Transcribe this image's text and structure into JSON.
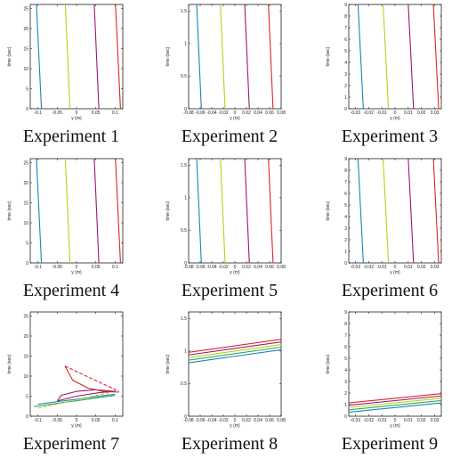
{
  "colors": {
    "blue": "#1b86b0",
    "yellow": "#b7cf1c",
    "magenta": "#9a1a6e",
    "red": "#d8262b",
    "green": "#2aa862"
  },
  "chart_data": [
    {
      "type": "line",
      "caption": "Experiment 1",
      "xlabel": "y (m)",
      "ylabel": "time (sec)",
      "xlim": [
        -0.12,
        0.12
      ],
      "ylim": [
        0,
        26
      ],
      "xticks": [
        -0.1,
        -0.05,
        0,
        0.05,
        0.1
      ],
      "xtick_labels": [
        "-0.1",
        "-0.05",
        "0",
        "0.05",
        "0.1"
      ],
      "yticks": [
        0,
        5,
        10,
        15,
        20,
        25
      ],
      "ytick_labels": [
        "0",
        "5",
        "10",
        "15",
        "20",
        "25"
      ],
      "series": [
        {
          "color": "#1b86b0",
          "x": [
            -0.104,
            -0.091
          ],
          "y": [
            26,
            0
          ]
        },
        {
          "color": "#b7cf1c",
          "x": [
            -0.029,
            -0.017
          ],
          "y": [
            26,
            0
          ]
        },
        {
          "color": "#9a1a6e",
          "x": [
            0.046,
            0.058
          ],
          "y": [
            26,
            0
          ]
        },
        {
          "color": "#d8262b",
          "x": [
            0.101,
            0.114
          ],
          "y": [
            26,
            0
          ]
        }
      ]
    },
    {
      "type": "line",
      "caption": "Experiment 2",
      "xlabel": "y (m)",
      "ylabel": "time (sec)",
      "xlim": [
        -0.08,
        0.08
      ],
      "ylim": [
        0,
        1.6
      ],
      "xticks": [
        -0.08,
        -0.06,
        -0.04,
        -0.02,
        0,
        0.02,
        0.04,
        0.06,
        0.08
      ],
      "xtick_labels": [
        "-0.08",
        "-0.06",
        "-0.04",
        "-0.02",
        "0",
        "0.02",
        "0.04",
        "0.06",
        "0.08"
      ],
      "yticks": [
        0,
        0.5,
        1,
        1.5
      ],
      "ytick_labels": [
        "0",
        "0.5",
        "1",
        "1.5"
      ],
      "series": [
        {
          "color": "#1b86b0",
          "x": [
            -0.066,
            -0.058
          ],
          "y": [
            1.6,
            0
          ]
        },
        {
          "color": "#b7cf1c",
          "x": [
            -0.025,
            -0.017
          ],
          "y": [
            1.6,
            0
          ]
        },
        {
          "color": "#9a1a6e",
          "x": [
            0.017,
            0.025
          ],
          "y": [
            1.6,
            0
          ]
        },
        {
          "color": "#d8262b",
          "x": [
            0.058,
            0.066
          ],
          "y": [
            1.6,
            0
          ]
        }
      ]
    },
    {
      "type": "line",
      "caption": "Experiment 3",
      "xlabel": "y (m)",
      "ylabel": "time (sec)",
      "xlim": [
        -0.035,
        0.035
      ],
      "ylim": [
        0,
        9
      ],
      "xticks": [
        -0.03,
        -0.02,
        -0.01,
        0,
        0.01,
        0.02,
        0.03
      ],
      "xtick_labels": [
        "-0.03",
        "-0.02",
        "-0.01",
        "0",
        "0.01",
        "0.02",
        "0.03"
      ],
      "yticks": [
        0,
        1,
        2,
        3,
        4,
        5,
        6,
        7,
        8,
        9
      ],
      "ytick_labels": [
        "0",
        "1",
        "2",
        "3",
        "4",
        "5",
        "6",
        "7",
        "8",
        "9"
      ],
      "series": [
        {
          "color": "#1b86b0",
          "x": [
            -0.028,
            -0.024
          ],
          "y": [
            9,
            0
          ]
        },
        {
          "color": "#b7cf1c",
          "x": [
            -0.009,
            -0.005
          ],
          "y": [
            9,
            0
          ]
        },
        {
          "color": "#9a1a6e",
          "x": [
            0.01,
            0.014
          ],
          "y": [
            9,
            0
          ]
        },
        {
          "color": "#d8262b",
          "x": [
            0.029,
            0.033
          ],
          "y": [
            9,
            0
          ]
        }
      ]
    },
    {
      "type": "line",
      "caption": "Experiment 4",
      "xlabel": "y (m)",
      "ylabel": "time (sec)",
      "xlim": [
        -0.12,
        0.12
      ],
      "ylim": [
        0,
        26
      ],
      "xticks": [
        -0.1,
        -0.05,
        0,
        0.05,
        0.1
      ],
      "xtick_labels": [
        "-0.1",
        "-0.05",
        "0",
        "0.05",
        "0.1"
      ],
      "yticks": [
        0,
        5,
        10,
        15,
        20,
        25
      ],
      "ytick_labels": [
        "0",
        "5",
        "10",
        "15",
        "20",
        "25"
      ],
      "series": [
        {
          "color": "#1b86b0",
          "x": [
            -0.104,
            -0.091
          ],
          "y": [
            26,
            0
          ]
        },
        {
          "color": "#b7cf1c",
          "x": [
            -0.029,
            -0.017
          ],
          "y": [
            26,
            0
          ]
        },
        {
          "color": "#9a1a6e",
          "x": [
            0.046,
            0.058
          ],
          "y": [
            26,
            0
          ]
        },
        {
          "color": "#d8262b",
          "x": [
            0.101,
            0.114
          ],
          "y": [
            26,
            0
          ]
        }
      ]
    },
    {
      "type": "line",
      "caption": "Experiment 5",
      "xlabel": "y (m)",
      "ylabel": "time (sec)",
      "xlim": [
        -0.08,
        0.08
      ],
      "ylim": [
        0,
        1.6
      ],
      "xticks": [
        -0.08,
        -0.06,
        -0.04,
        -0.02,
        0,
        0.02,
        0.04,
        0.06,
        0.08
      ],
      "xtick_labels": [
        "-0.08",
        "-0.06",
        "-0.04",
        "-0.02",
        "0",
        "0.02",
        "0.04",
        "0.06",
        "0.08"
      ],
      "yticks": [
        0,
        0.5,
        1,
        1.5
      ],
      "ytick_labels": [
        "0",
        "0.5",
        "1",
        "1.5"
      ],
      "series": [
        {
          "color": "#1b86b0",
          "x": [
            -0.066,
            -0.058
          ],
          "y": [
            1.6,
            0
          ]
        },
        {
          "color": "#b7cf1c",
          "x": [
            -0.025,
            -0.017
          ],
          "y": [
            1.6,
            0
          ]
        },
        {
          "color": "#9a1a6e",
          "x": [
            0.017,
            0.025
          ],
          "y": [
            1.6,
            0
          ]
        },
        {
          "color": "#d8262b",
          "x": [
            0.058,
            0.066
          ],
          "y": [
            1.6,
            0
          ]
        }
      ]
    },
    {
      "type": "line",
      "caption": "Experiment 6",
      "xlabel": "y (m)",
      "ylabel": "time (sec)",
      "xlim": [
        -0.035,
        0.035
      ],
      "ylim": [
        0,
        9
      ],
      "xticks": [
        -0.03,
        -0.02,
        -0.01,
        0,
        0.01,
        0.02,
        0.03
      ],
      "xtick_labels": [
        "-0.03",
        "-0.02",
        "-0.01",
        "0",
        "0.01",
        "0.02",
        "0.03"
      ],
      "yticks": [
        0,
        1,
        2,
        3,
        4,
        5,
        6,
        7,
        8,
        9
      ],
      "ytick_labels": [
        "0",
        "1",
        "2",
        "3",
        "4",
        "5",
        "6",
        "7",
        "8",
        "9"
      ],
      "series": [
        {
          "color": "#1b86b0",
          "x": [
            -0.028,
            -0.024
          ],
          "y": [
            9,
            0
          ]
        },
        {
          "color": "#b7cf1c",
          "x": [
            -0.009,
            -0.005
          ],
          "y": [
            9,
            0
          ]
        },
        {
          "color": "#9a1a6e",
          "x": [
            0.01,
            0.014
          ],
          "y": [
            9,
            0
          ]
        },
        {
          "color": "#d8262b",
          "x": [
            0.029,
            0.033
          ],
          "y": [
            9,
            0
          ]
        }
      ]
    },
    {
      "type": "line",
      "caption": "Experiment 7",
      "xlabel": "y (m)",
      "ylabel": "time (sec)",
      "xlim": [
        -0.12,
        0.12
      ],
      "ylim": [
        0,
        26
      ],
      "xticks": [
        -0.1,
        -0.05,
        0,
        0.05,
        0.1
      ],
      "xtick_labels": [
        "-0.1",
        "-0.05",
        "0",
        "0.05",
        "0.1"
      ],
      "yticks": [
        0,
        5,
        10,
        15,
        20,
        25
      ],
      "ytick_labels": [
        "0",
        "5",
        "10",
        "15",
        "20",
        "25"
      ],
      "series": [
        {
          "color": "#1b86b0",
          "x": [
            -0.1,
            0.1
          ],
          "y": [
            3.0,
            5.5
          ]
        },
        {
          "color": "#2aa862",
          "x": [
            -0.11,
            0.1
          ],
          "y": [
            2.4,
            5.2
          ]
        },
        {
          "color": "#b7cf1c",
          "x": [
            -0.1,
            0.1
          ],
          "y": [
            2.0,
            6.2
          ],
          "dashed": true
        },
        {
          "color": "#9a1a6e",
          "x": [
            -0.05,
            -0.04,
            0,
            0.05,
            0.1,
            0.06,
            0.0,
            -0.05
          ],
          "y": [
            3.8,
            5.2,
            6.2,
            6.6,
            6.2,
            5.9,
            5.0,
            3.8
          ]
        },
        {
          "color": "#d8262b",
          "x": [
            -0.03,
            -0.01,
            0.03,
            0.07,
            0.11
          ],
          "y": [
            12.5,
            9.0,
            7.0,
            6.2,
            6.0
          ]
        },
        {
          "color": "#d8262b",
          "x": [
            -0.03,
            0.11
          ],
          "y": [
            12.5,
            6.2
          ],
          "dashed": true
        }
      ]
    },
    {
      "type": "line",
      "caption": "Experiment 8",
      "xlabel": "y (m)",
      "ylabel": "time (sec)",
      "xlim": [
        -0.08,
        0.08
      ],
      "ylim": [
        0,
        1.6
      ],
      "xticks": [
        -0.08,
        -0.06,
        -0.04,
        -0.02,
        0,
        0.02,
        0.04,
        0.06,
        0.08
      ],
      "xtick_labels": [
        "-0.08",
        "-0.06",
        "-0.04",
        "-0.02",
        "0",
        "0.02",
        "0.04",
        "0.06",
        "0.08"
      ],
      "yticks": [
        0,
        0.5,
        1,
        1.5
      ],
      "ytick_labels": [
        "0",
        "0.5",
        "1",
        "1.5"
      ],
      "series": [
        {
          "color": "#d8262b",
          "x": [
            -0.08,
            0.08
          ],
          "y": [
            0.98,
            1.18
          ]
        },
        {
          "color": "#9a1a6e",
          "x": [
            -0.08,
            0.08
          ],
          "y": [
            0.94,
            1.14
          ]
        },
        {
          "color": "#b7cf1c",
          "x": [
            -0.08,
            0.08
          ],
          "y": [
            0.9,
            1.1
          ]
        },
        {
          "color": "#2aa862",
          "x": [
            -0.08,
            0.08
          ],
          "y": [
            0.86,
            1.06
          ]
        },
        {
          "color": "#1b86b0",
          "x": [
            -0.08,
            0.08
          ],
          "y": [
            0.82,
            1.02
          ]
        }
      ]
    },
    {
      "type": "line",
      "caption": "Experiment 9",
      "xlabel": "y (m)",
      "ylabel": "time (sec)",
      "xlim": [
        -0.035,
        0.035
      ],
      "ylim": [
        0,
        9
      ],
      "xticks": [
        -0.03,
        -0.02,
        -0.01,
        0,
        0.01,
        0.02,
        0.03
      ],
      "xtick_labels": [
        "-0.03",
        "-0.02",
        "-0.01",
        "0",
        "0.01",
        "0.02",
        "0.03"
      ],
      "yticks": [
        0,
        1,
        2,
        3,
        4,
        5,
        6,
        7,
        8,
        9
      ],
      "ytick_labels": [
        "0",
        "1",
        "2",
        "3",
        "4",
        "5",
        "6",
        "7",
        "8",
        "9"
      ],
      "series": [
        {
          "color": "#d8262b",
          "x": [
            -0.035,
            0.035
          ],
          "y": [
            1.15,
            1.95
          ]
        },
        {
          "color": "#9a1a6e",
          "x": [
            -0.035,
            0.035
          ],
          "y": [
            0.95,
            1.75
          ]
        },
        {
          "color": "#b7cf1c",
          "x": [
            -0.035,
            0.035
          ],
          "y": [
            0.75,
            1.55
          ]
        },
        {
          "color": "#2aa862",
          "x": [
            -0.035,
            0.035
          ],
          "y": [
            0.55,
            1.35
          ]
        },
        {
          "color": "#1b86b0",
          "x": [
            -0.035,
            0.035
          ],
          "y": [
            0.35,
            1.15
          ]
        }
      ]
    }
  ]
}
